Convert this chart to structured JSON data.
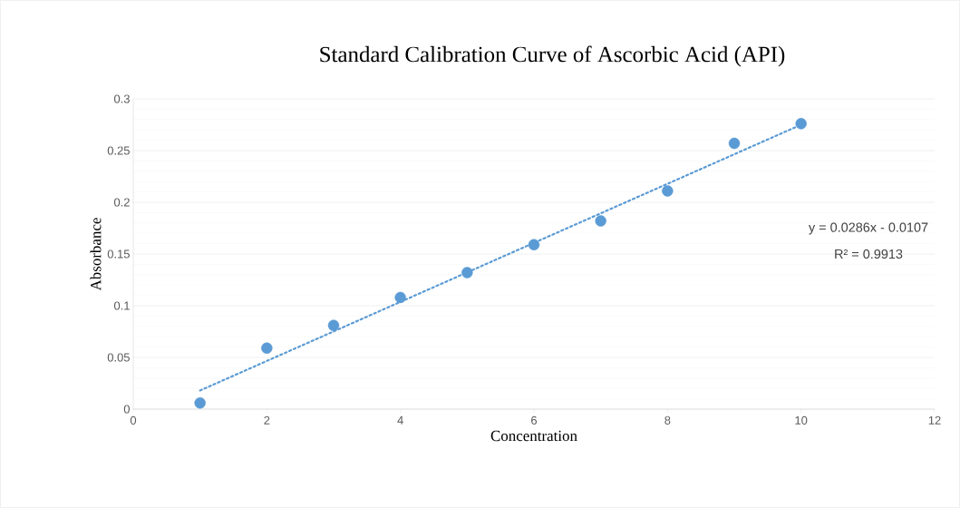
{
  "chart_data": {
    "type": "scatter",
    "title": "Standard Calibration Curve of Ascorbic Acid (API)",
    "xlabel": "Concentration",
    "ylabel": "Absorbance",
    "x": [
      1,
      2,
      3,
      4,
      5,
      6,
      7,
      8,
      9,
      10
    ],
    "series": [
      {
        "color": "#5b9bd5",
        "marker": "circle",
        "values": [
          0.006,
          0.059,
          0.081,
          0.108,
          0.132,
          0.159,
          0.182,
          0.211,
          0.257,
          0.276
        ]
      },
      {
        "type": "line",
        "color": "#5b9bd5",
        "line_style": "dotted",
        "marker": "none",
        "x": [
          1,
          10
        ],
        "values": [
          0.018,
          0.275
        ]
      }
    ],
    "xlim": [
      0,
      12
    ],
    "xticks": [
      0,
      2,
      4,
      6,
      8,
      10,
      12
    ],
    "ylim": [
      0,
      0.3
    ],
    "yticks": [
      0,
      0.05,
      0.1,
      0.15,
      0.2,
      0.25,
      0.3
    ],
    "grid": "y",
    "annotations": [
      "y = 0.0286x - 0.0107",
      "R² = 0.9913"
    ]
  }
}
